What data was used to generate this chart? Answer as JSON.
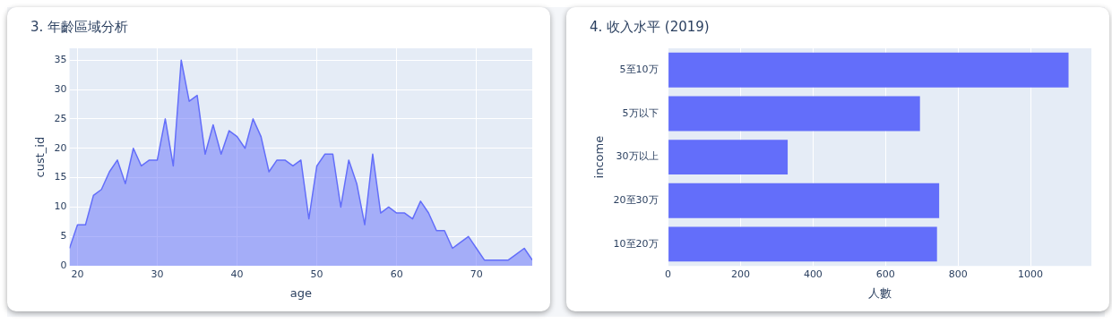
{
  "chart_data": [
    {
      "type": "area",
      "title": "3. 年齡區域分析",
      "xlabel": "age",
      "ylabel": "cust_id",
      "color": "#636efa",
      "x": [
        19,
        20,
        21,
        22,
        23,
        24,
        25,
        26,
        27,
        28,
        29,
        30,
        31,
        32,
        33,
        34,
        35,
        36,
        37,
        38,
        39,
        40,
        41,
        42,
        43,
        44,
        45,
        46,
        47,
        48,
        49,
        50,
        51,
        52,
        53,
        54,
        55,
        56,
        57,
        58,
        59,
        60,
        61,
        62,
        63,
        64,
        65,
        66,
        67,
        68,
        69,
        70,
        71,
        72,
        73,
        74,
        75,
        76,
        77
      ],
      "values": [
        3,
        7,
        7,
        12,
        13,
        16,
        18,
        14,
        20,
        17,
        18,
        18,
        25,
        17,
        35,
        28,
        29,
        19,
        24,
        19,
        23,
        22,
        20,
        25,
        22,
        16,
        18,
        18,
        17,
        18,
        8,
        17,
        19,
        19,
        10,
        18,
        14,
        7,
        19,
        9,
        10,
        9,
        9,
        8,
        11,
        9,
        6,
        6,
        3,
        4,
        5,
        3,
        1,
        1,
        1,
        1,
        2,
        3,
        1
      ],
      "xlim": [
        19,
        77
      ],
      "xticks": [
        20,
        30,
        40,
        50,
        60,
        70
      ],
      "ylim": [
        0,
        37
      ],
      "yticks": [
        0,
        5,
        10,
        15,
        20,
        25,
        30,
        35
      ],
      "grid": true
    },
    {
      "type": "bar",
      "orientation": "horizontal",
      "title": "4. 收入水平 (2019)",
      "xlabel": "人數",
      "ylabel": "income",
      "color": "#636efa",
      "categories": [
        "5至10万",
        "5万以下",
        "30万以上",
        "20至30万",
        "10至20万"
      ],
      "values": [
        1105,
        695,
        330,
        748,
        742
      ],
      "xlim": [
        0,
        1168
      ],
      "xticks": [
        0,
        200,
        400,
        600,
        800,
        1000
      ],
      "grid": true
    }
  ]
}
